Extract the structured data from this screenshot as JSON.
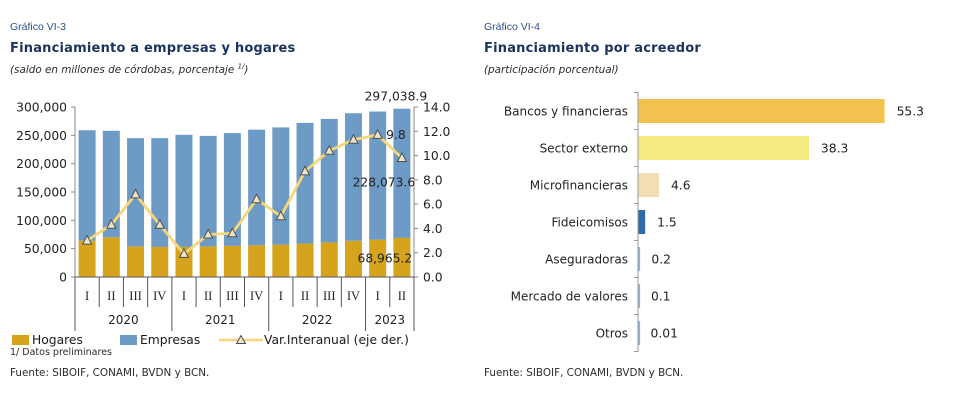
{
  "left_panel": {
    "figure_label": "Gráfico VI-3",
    "title": "Financiamiento a empresas y hogares",
    "subtitle": "(saldo en millones de córdobas, porcentaje ",
    "subtitle_sup": "1/",
    "subtitle_close": ")",
    "footnote": "1/ Datos preliminares",
    "source": "Fuente: SIBOIF, CONAMI, BVDN y BCN."
  },
  "right_panel": {
    "figure_label": "Gráfico VI-4",
    "title": "Financiamiento por acreedor",
    "subtitle": "(participación porcentual)",
    "source": "Fuente: SIBOIF, CONAMI, BVDN y BCN."
  },
  "chart_data": [
    {
      "type": "bar",
      "stacked": true,
      "categories": [
        "I",
        "II",
        "III",
        "IV",
        "I",
        "II",
        "III",
        "IV",
        "I",
        "II",
        "III",
        "IV",
        "I",
        "II"
      ],
      "category_groups": [
        {
          "label": "2020",
          "span": 4
        },
        {
          "label": "2021",
          "span": 4
        },
        {
          "label": "2022",
          "span": 4
        },
        {
          "label": "2023",
          "span": 2
        }
      ],
      "series": [
        {
          "name": "Hogares",
          "type": "bar",
          "axis": "left",
          "color": "#D5A41C",
          "values": [
            64000,
            70000,
            54000,
            53000,
            53000,
            54000,
            55000,
            56000,
            57000,
            59000,
            61000,
            64000,
            66000,
            68965.2
          ]
        },
        {
          "name": "Empresas",
          "type": "bar",
          "axis": "left",
          "color": "#6D9BC5",
          "values": [
            195000,
            188000,
            191000,
            192000,
            198000,
            195000,
            199000,
            204000,
            207000,
            213000,
            218000,
            225000,
            226000,
            228073.6
          ]
        },
        {
          "name": "Var.Interanual (eje der.)",
          "type": "line",
          "axis": "right",
          "color": "#F6D67A",
          "marker": "triangle",
          "values": [
            3.0,
            4.3,
            6.8,
            4.3,
            1.9,
            3.5,
            3.6,
            6.4,
            5.0,
            8.7,
            10.4,
            11.3,
            11.7,
            9.8
          ]
        }
      ],
      "y_left": {
        "range": [
          0,
          300000
        ],
        "ticks": [
          "0",
          "50,000",
          "100,000",
          "150,000",
          "200,000",
          "250,000",
          "300,000"
        ]
      },
      "y_right": {
        "range": [
          0,
          14
        ],
        "ticks": [
          "0.0",
          "2.0",
          "4.0",
          "6.0",
          "8.0",
          "10.0",
          "12.0",
          "14.0"
        ]
      },
      "data_labels": {
        "total_last": "297,038.9",
        "empresas_last": "228,073.6",
        "hogares_last": "68,965.2",
        "var_last": "9.8"
      },
      "legend": "bottom",
      "grid": false
    },
    {
      "type": "bar",
      "orientation": "horizontal",
      "categories": [
        "Bancos y financieras",
        "Sector externo",
        "Microfinancieras",
        "Fideicomisos",
        "Aseguradoras",
        "Mercado de valores",
        "Otros"
      ],
      "values": [
        55.3,
        38.3,
        4.6,
        1.5,
        0.2,
        0.1,
        0.01
      ],
      "colors": [
        "#F2C24F",
        "#F5EA80",
        "#F1DEB5",
        "#2F6CA5",
        "#8DB5D9",
        "#8DB5D9",
        "#8DB5D9"
      ],
      "grid": false
    }
  ]
}
